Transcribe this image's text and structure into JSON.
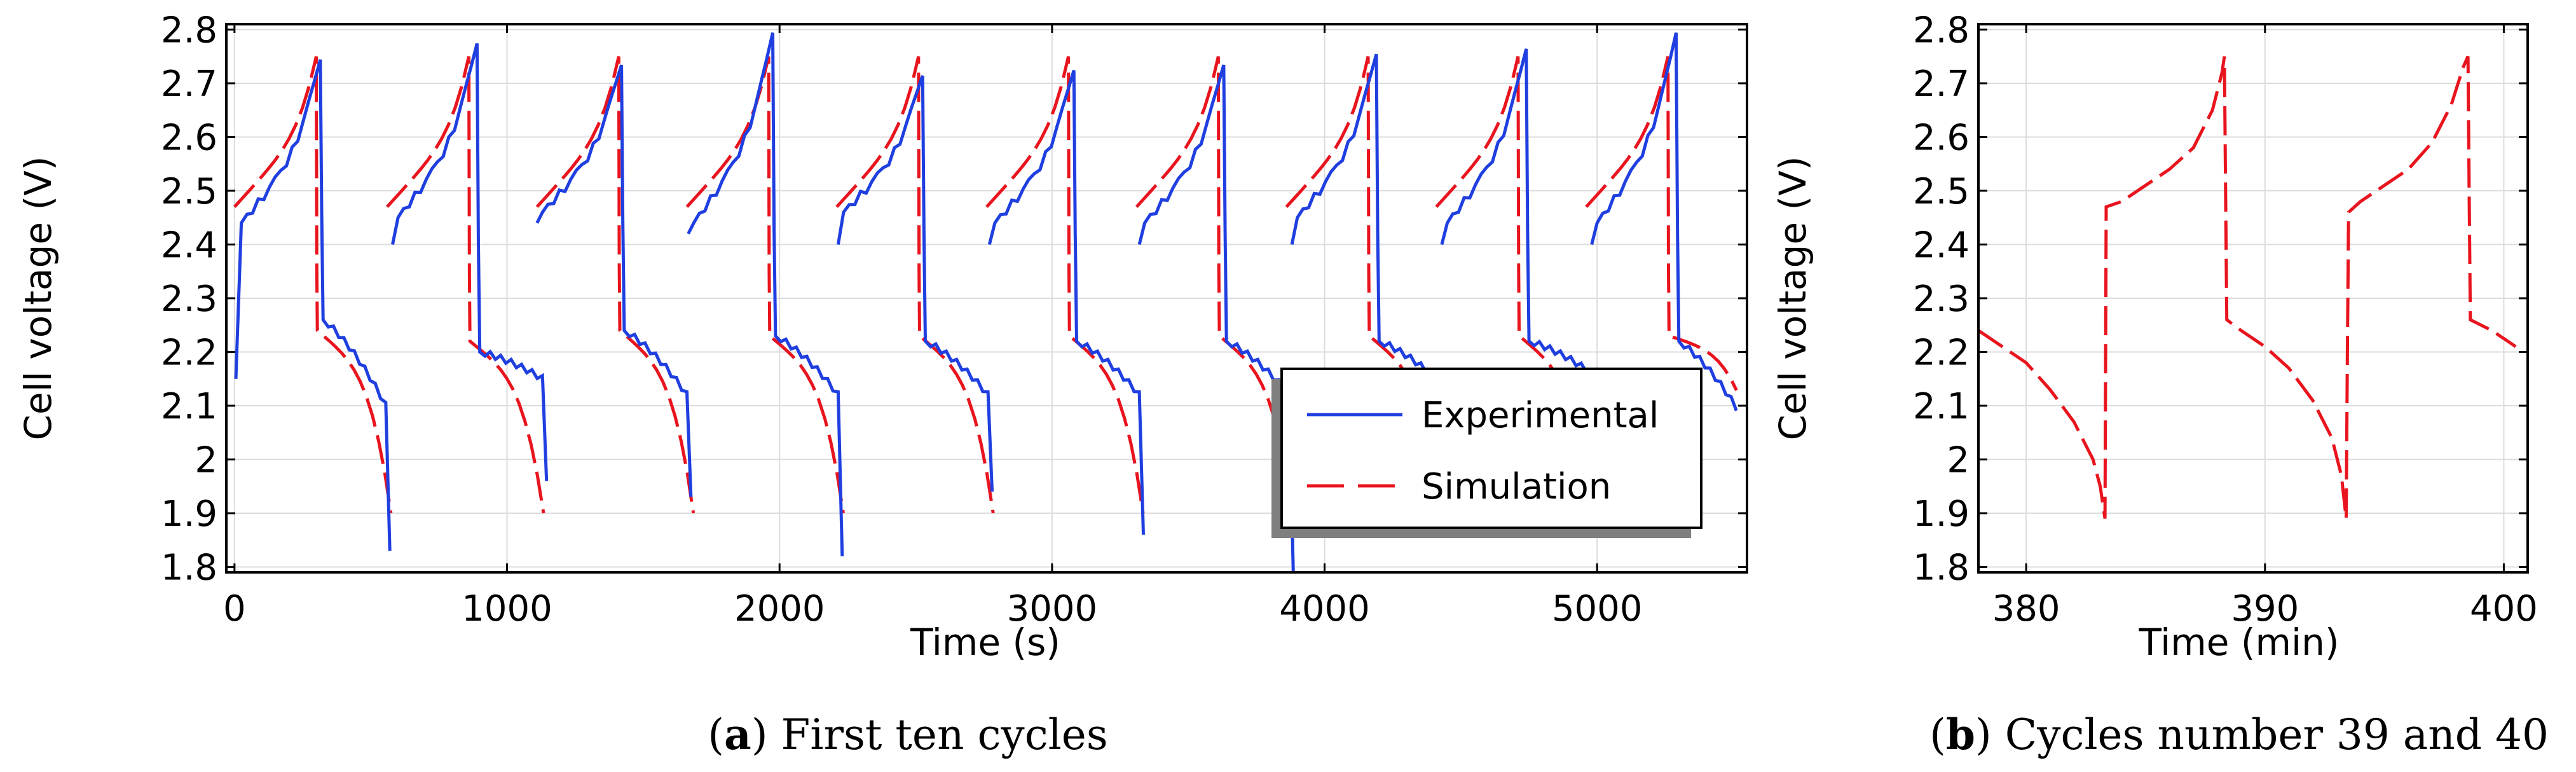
{
  "chart_data": [
    {
      "type": "line",
      "panel": "a",
      "caption_letter": "a",
      "caption_text": "First ten cycles",
      "xlabel": "Time (s)",
      "ylabel": "Cell voltage (V)",
      "xlim": [
        -30,
        5550
      ],
      "ylim": [
        1.79,
        2.81
      ],
      "xticks": [
        0,
        1000,
        2000,
        3000,
        4000,
        5000
      ],
      "yticks": [
        1.8,
        1.9,
        2,
        2.1,
        2.2,
        2.3,
        2.4,
        2.5,
        2.6,
        2.7,
        2.8
      ],
      "ytick_labels": [
        "1.8",
        "1.9",
        "2",
        "2.1",
        "2.2",
        "2.3",
        "2.4",
        "2.5",
        "2.6",
        "2.7",
        "2.8"
      ],
      "grid": true,
      "legend_position": "bottom-right",
      "series": [
        {
          "name": "Experimental",
          "color": "#1f3fe0",
          "dash": "solid",
          "cycle_period": 548,
          "cycles": [
            {
              "start": 5,
              "low": 2.15,
              "low2": 2.44,
              "peak": 2.75,
              "dis_top": 2.26,
              "dis_end": 2.1,
              "trough": 1.83
            },
            {
              "start": 580,
              "low": 2.4,
              "low2": 2.45,
              "peak": 2.78,
              "dis_top": 2.2,
              "dis_end": 2.15,
              "trough": 1.96
            },
            {
              "start": 1110,
              "low": 2.44,
              "low2": 2.46,
              "peak": 2.74,
              "dis_top": 2.24,
              "dis_end": 2.12,
              "trough": 1.93
            },
            {
              "start": 1665,
              "low": 2.42,
              "low2": 2.44,
              "peak": 2.8,
              "dis_top": 2.23,
              "dis_end": 2.12,
              "trough": 1.82
            },
            {
              "start": 2215,
              "low": 2.4,
              "low2": 2.46,
              "peak": 2.72,
              "dis_top": 2.22,
              "dis_end": 2.12,
              "trough": 1.94
            },
            {
              "start": 2770,
              "low": 2.4,
              "low2": 2.44,
              "peak": 2.73,
              "dis_top": 2.22,
              "dis_end": 2.12,
              "trough": 1.86
            },
            {
              "start": 3320,
              "low": 2.4,
              "low2": 2.44,
              "peak": 2.74,
              "dis_top": 2.22,
              "dis_end": 2.12,
              "trough": 1.78
            },
            {
              "start": 3880,
              "low": 2.4,
              "low2": 2.45,
              "peak": 2.76,
              "dis_top": 2.22,
              "dis_end": 2.14,
              "trough": 2.16
            },
            {
              "start": 4430,
              "low": 2.4,
              "low2": 2.44,
              "peak": 2.77,
              "dis_top": 2.22,
              "dis_end": 2.16,
              "trough": 2.16
            },
            {
              "start": 4980,
              "low": 2.4,
              "low2": 2.44,
              "peak": 2.8,
              "dis_top": 2.22,
              "dis_end": 2.08,
              "trough": 2.08
            }
          ]
        },
        {
          "name": "Simulation",
          "color": "#e8141e",
          "dash": "dashed",
          "cycles": [
            {
              "start": 0,
              "low": 2.47,
              "peak": 2.75,
              "dis_top": 2.24,
              "trough": 1.9
            },
            {
              "start": 560,
              "low": 2.47,
              "peak": 2.75,
              "dis_top": 2.22,
              "trough": 1.9
            },
            {
              "start": 1110,
              "low": 2.47,
              "peak": 2.75,
              "dis_top": 2.24,
              "trough": 1.9
            },
            {
              "start": 1660,
              "low": 2.47,
              "peak": 2.75,
              "dis_top": 2.23,
              "trough": 1.9
            },
            {
              "start": 2210,
              "low": 2.47,
              "peak": 2.75,
              "dis_top": 2.23,
              "trough": 1.9
            },
            {
              "start": 2760,
              "low": 2.47,
              "peak": 2.75,
              "dis_top": 2.23,
              "trough": 1.9
            },
            {
              "start": 3310,
              "low": 2.47,
              "peak": 2.75,
              "dis_top": 2.23,
              "trough": 1.9
            },
            {
              "start": 3860,
              "low": 2.47,
              "peak": 2.75,
              "dis_top": 2.23,
              "trough": 1.9
            },
            {
              "start": 4410,
              "low": 2.47,
              "peak": 2.75,
              "dis_top": 2.23,
              "trough": 1.9
            },
            {
              "start": 4960,
              "low": 2.47,
              "peak": 2.75,
              "dis_top": 2.23,
              "trough": 2.1
            }
          ]
        }
      ]
    },
    {
      "type": "line",
      "panel": "b",
      "caption_letter": "b",
      "caption_text": "Cycles number 39 and 40",
      "xlabel": "Time (min)",
      "ylabel": "Cell voltage (V)",
      "xlim": [
        378,
        401
      ],
      "ylim": [
        1.79,
        2.81
      ],
      "xticks": [
        380,
        390,
        400
      ],
      "yticks": [
        1.8,
        1.9,
        2,
        2.1,
        2.2,
        2.3,
        2.4,
        2.5,
        2.6,
        2.7,
        2.8
      ],
      "ytick_labels": [
        "1.8",
        "1.9",
        "2",
        "2.1",
        "2.2",
        "2.3",
        "2.4",
        "2.5",
        "2.6",
        "2.7",
        "2.8"
      ],
      "grid": true,
      "series": [
        {
          "name": "Simulation",
          "color": "#e8141e",
          "dash": "dashed",
          "points": [
            [
              378,
              2.24
            ],
            [
              379,
              2.21
            ],
            [
              380,
              2.18
            ],
            [
              381,
              2.13
            ],
            [
              382,
              2.07
            ],
            [
              382.8,
              2.0
            ],
            [
              383.1,
              1.95
            ],
            [
              383.3,
              1.89
            ],
            [
              383.35,
              2.47
            ],
            [
              384,
              2.48
            ],
            [
              385,
              2.51
            ],
            [
              386,
              2.54
            ],
            [
              387,
              2.58
            ],
            [
              387.8,
              2.65
            ],
            [
              388.2,
              2.72
            ],
            [
              388.3,
              2.75
            ],
            [
              388.35,
              2.5
            ],
            [
              388.4,
              2.26
            ],
            [
              389,
              2.24
            ],
            [
              390,
              2.21
            ],
            [
              391,
              2.17
            ],
            [
              392,
              2.11
            ],
            [
              392.8,
              2.04
            ],
            [
              393.2,
              1.97
            ],
            [
              393.4,
              1.89
            ],
            [
              393.45,
              2.2
            ],
            [
              393.5,
              2.46
            ],
            [
              394,
              2.48
            ],
            [
              395,
              2.51
            ],
            [
              396,
              2.54
            ],
            [
              397,
              2.59
            ],
            [
              397.8,
              2.66
            ],
            [
              398.3,
              2.73
            ],
            [
              398.5,
              2.75
            ],
            [
              398.55,
              2.49
            ],
            [
              398.6,
              2.26
            ],
            [
              399.5,
              2.24
            ],
            [
              400.5,
              2.21
            ]
          ]
        }
      ]
    }
  ]
}
